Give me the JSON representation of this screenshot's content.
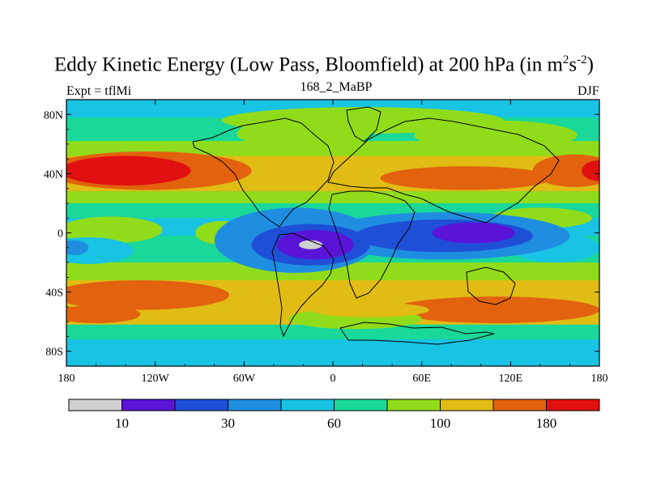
{
  "chart_data": {
    "type": "heatmap",
    "title": "Eddy Kinetic Energy (Low Pass, Bloomfield) at 200 hPa (in m",
    "title_unit_sup_1": "2",
    "title_unit_mid": "s",
    "title_unit_sup_2": "-2",
    "title_end": ")",
    "left_string": "Expt = tflMi",
    "center_string": "168_2_MaBP",
    "right_string": "DJF",
    "xlim": [
      -180,
      180
    ],
    "ylim": [
      -90,
      90
    ],
    "x_ticks": [
      {
        "value": -180,
        "label": "180"
      },
      {
        "value": -120,
        "label": "120W"
      },
      {
        "value": -60,
        "label": "60W"
      },
      {
        "value": 0,
        "label": "0"
      },
      {
        "value": 60,
        "label": "60E"
      },
      {
        "value": 120,
        "label": "120E"
      },
      {
        "value": 180,
        "label": "180"
      }
    ],
    "y_ticks": [
      {
        "value": 80,
        "label": "80N"
      },
      {
        "value": 40,
        "label": "40N"
      },
      {
        "value": 0,
        "label": "0"
      },
      {
        "value": -40,
        "label": "40S"
      },
      {
        "value": -80,
        "label": "80S"
      }
    ],
    "levels": [
      10,
      20,
      30,
      45,
      60,
      80,
      100,
      120,
      150,
      180
    ],
    "level_labels": [
      {
        "index": 1,
        "label": "10"
      },
      {
        "index": 3,
        "label": "30"
      },
      {
        "index": 5,
        "label": "60"
      },
      {
        "index": 7,
        "label": "100"
      },
      {
        "index": 9,
        "label": "180"
      }
    ],
    "colors": [
      "#d0d0d0",
      "#5a14d8",
      "#1e4fd6",
      "#1f8ee0",
      "#18c3e4",
      "#19d89a",
      "#90dc1a",
      "#e0bc14",
      "#e2620e",
      "#e01010"
    ],
    "bands": [
      {
        "lat": [
          78,
          90
        ],
        "level": 4
      },
      {
        "lat": [
          62,
          78
        ],
        "level": 5
      },
      {
        "lat": [
          52,
          62
        ],
        "level": 6
      },
      {
        "lat": [
          28,
          52
        ],
        "level": 7
      },
      {
        "lat": [
          20,
          28
        ],
        "level": 6
      },
      {
        "lat": [
          10,
          20
        ],
        "level": 5
      },
      {
        "lat": [
          -2,
          10
        ],
        "level": 4
      },
      {
        "lat": [
          -20,
          -2
        ],
        "level": 5
      },
      {
        "lat": [
          -32,
          -20
        ],
        "level": 6
      },
      {
        "lat": [
          -62,
          -32
        ],
        "level": 7
      },
      {
        "lat": [
          -72,
          -62
        ],
        "level": 5
      },
      {
        "lat": [
          -90,
          -72
        ],
        "level": 4
      }
    ],
    "blobs": [
      {
        "lon": -125,
        "lat": 42,
        "rlon": 70,
        "rlat": 13,
        "level": 8
      },
      {
        "lon": -140,
        "lat": 42,
        "rlon": 44,
        "rlat": 10,
        "level": 9
      },
      {
        "lon": 90,
        "lat": 37,
        "rlon": 58,
        "rlat": 8,
        "level": 8
      },
      {
        "lon": 163,
        "lat": 42,
        "rlon": 28,
        "rlat": 11,
        "level": 8
      },
      {
        "lon": 180,
        "lat": 42,
        "rlon": 12,
        "rlat": 7,
        "level": 9
      },
      {
        "lon": 20,
        "lat": 76,
        "rlon": 95,
        "rlat": 9,
        "level": 6
      },
      {
        "lon": -20,
        "lat": 67,
        "rlon": 45,
        "rlat": 10,
        "level": 6
      },
      {
        "lon": 110,
        "lat": 66,
        "rlon": 55,
        "rlat": 10,
        "level": 6
      },
      {
        "lon": -75,
        "lat": 0,
        "rlon": 18,
        "rlat": 8,
        "level": 6
      },
      {
        "lon": -150,
        "lat": 2,
        "rlon": 35,
        "rlat": 9,
        "level": 6
      },
      {
        "lon": 140,
        "lat": 10,
        "rlon": 35,
        "rlat": 7,
        "level": 6
      },
      {
        "lon": -165,
        "lat": -12,
        "rlon": 30,
        "rlat": 9,
        "level": 4
      },
      {
        "lon": 150,
        "lat": -10,
        "rlon": 30,
        "rlat": 10,
        "level": 4
      },
      {
        "lon": -25,
        "lat": -5,
        "rlon": 55,
        "rlat": 22,
        "level": 3
      },
      {
        "lon": 75,
        "lat": -2,
        "rlon": 85,
        "rlat": 16,
        "level": 3
      },
      {
        "lon": -175,
        "lat": -10,
        "rlon": 10,
        "rlat": 5,
        "level": 3
      },
      {
        "lon": -15,
        "lat": -8,
        "rlon": 40,
        "rlat": 14,
        "level": 2
      },
      {
        "lon": 75,
        "lat": -2,
        "rlon": 60,
        "rlat": 11,
        "level": 2
      },
      {
        "lon": -12,
        "lat": -8,
        "rlon": 26,
        "rlat": 10,
        "level": 1
      },
      {
        "lon": 95,
        "lat": 0,
        "rlon": 28,
        "rlat": 7,
        "level": 1
      },
      {
        "lon": -15,
        "lat": -8,
        "rlon": 8,
        "rlat": 3,
        "level": 0
      },
      {
        "lon": -130,
        "lat": -42,
        "rlon": 60,
        "rlat": 10,
        "level": 8
      },
      {
        "lon": -160,
        "lat": -55,
        "rlon": 30,
        "rlat": 6,
        "level": 8
      },
      {
        "lon": 110,
        "lat": -52,
        "rlon": 70,
        "rlat": 9,
        "level": 8
      },
      {
        "lon": 15,
        "lat": -58,
        "rlon": 45,
        "rlat": 7,
        "level": 6
      },
      {
        "lon": 25,
        "lat": -52,
        "rlon": 40,
        "rlat": 5,
        "level": 7
      }
    ]
  }
}
